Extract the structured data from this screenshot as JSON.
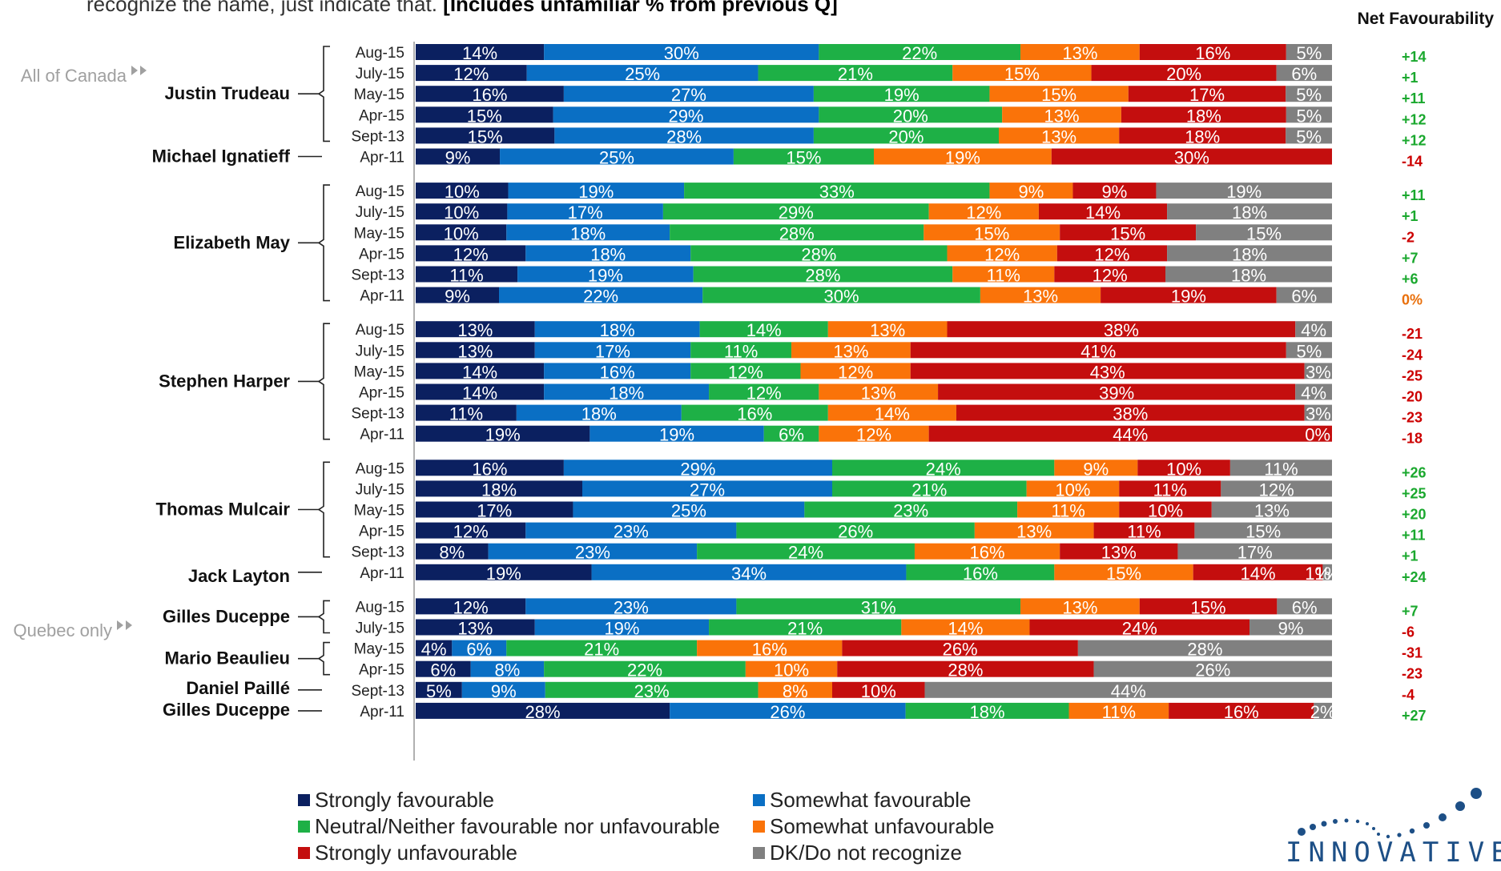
{
  "top_note": {
    "prefix": "recognize the name, just indicate that. ",
    "bold": "[Includes unfamiliar % from previous Q]"
  },
  "section_labels": [
    "All of Canada",
    "Quebec only"
  ],
  "net_header": "Net Favourability",
  "colors": {
    "strongly_favourable": "#0b2060",
    "somewhat_favourable": "#0a6fc4",
    "neutral": "#1eb046",
    "somewhat_unfavourable": "#fa7309",
    "strongly_unfavourable": "#c40e0e",
    "dk": "#808080",
    "net_positive": "#1aa82e",
    "net_negative": "#cc0000",
    "net_zero": "#e96f0a"
  },
  "chart_data": {
    "type": "bar",
    "orientation": "horizontal",
    "stacked": true,
    "series": [
      {
        "name": "Strongly favourable",
        "color": "#0b2060"
      },
      {
        "name": "Somewhat favourable",
        "color": "#0a6fc4"
      },
      {
        "name": "Neutral/Neither favourable nor unfavourable",
        "color": "#1eb046"
      },
      {
        "name": "Somewhat unfavourable",
        "color": "#fa7309"
      },
      {
        "name": "Strongly unfavourable",
        "color": "#c40e0e"
      },
      {
        "name": "DK/Do not recognize",
        "color": "#808080"
      }
    ],
    "groups": [
      {
        "name": "Justin Trudeau",
        "rows": [
          {
            "date": "Aug-15",
            "values": [
              14,
              30,
              22,
              13,
              16,
              5
            ],
            "net": "+14"
          },
          {
            "date": "July-15",
            "values": [
              12,
              25,
              21,
              15,
              20,
              6
            ],
            "net": "+1"
          },
          {
            "date": "May-15",
            "values": [
              16,
              27,
              19,
              15,
              17,
              5
            ],
            "net": "+11"
          },
          {
            "date": "Apr-15",
            "values": [
              15,
              29,
              20,
              13,
              18,
              5
            ],
            "net": "+12"
          },
          {
            "date": "Sept-13",
            "values": [
              15,
              28,
              20,
              13,
              18,
              5
            ],
            "net": "+12"
          }
        ]
      },
      {
        "name": "Michael Ignatieff",
        "rows": [
          {
            "date": "Apr-11",
            "values": [
              9,
              25,
              15,
              19,
              30,
              0
            ],
            "net": "-14"
          }
        ]
      },
      {
        "name": "Elizabeth May",
        "rows": [
          {
            "date": "Aug-15",
            "values": [
              10,
              19,
              33,
              9,
              9,
              19
            ],
            "net": "+11"
          },
          {
            "date": "July-15",
            "values": [
              10,
              17,
              29,
              12,
              14,
              18
            ],
            "net": "+1"
          },
          {
            "date": "May-15",
            "values": [
              10,
              18,
              28,
              15,
              15,
              15
            ],
            "net": "-2"
          },
          {
            "date": "Apr-15",
            "values": [
              12,
              18,
              28,
              12,
              12,
              18
            ],
            "net": "+7"
          },
          {
            "date": "Sept-13",
            "values": [
              11,
              19,
              28,
              11,
              12,
              18
            ],
            "net": "+6"
          },
          {
            "date": "Apr-11",
            "values": [
              9,
              22,
              30,
              13,
              19,
              6
            ],
            "net": "0%"
          }
        ]
      },
      {
        "name": "Stephen Harper",
        "rows": [
          {
            "date": "Aug-15",
            "values": [
              13,
              18,
              14,
              13,
              38,
              4
            ],
            "net": "-21"
          },
          {
            "date": "July-15",
            "values": [
              13,
              17,
              11,
              13,
              41,
              5
            ],
            "net": "-24"
          },
          {
            "date": "May-15",
            "values": [
              14,
              16,
              12,
              12,
              43,
              3
            ],
            "net": "-25"
          },
          {
            "date": "Apr-15",
            "values": [
              14,
              18,
              12,
              13,
              39,
              4
            ],
            "net": "-20"
          },
          {
            "date": "Sept-13",
            "values": [
              11,
              18,
              16,
              14,
              38,
              3
            ],
            "net": "-23"
          },
          {
            "date": "Apr-11",
            "values": [
              19,
              19,
              6,
              12,
              44,
              0
            ],
            "net": "-18"
          }
        ]
      },
      {
        "name": "Thomas Mulcair",
        "rows": [
          {
            "date": "Aug-15",
            "values": [
              16,
              29,
              24,
              9,
              10,
              11
            ],
            "net": "+26"
          },
          {
            "date": "July-15",
            "values": [
              18,
              27,
              21,
              10,
              11,
              12
            ],
            "net": "+25"
          },
          {
            "date": "May-15",
            "values": [
              17,
              25,
              23,
              11,
              10,
              13
            ],
            "net": "+20"
          },
          {
            "date": "Apr-15",
            "values": [
              12,
              23,
              26,
              13,
              11,
              15
            ],
            "net": "+11"
          },
          {
            "date": "Sept-13",
            "values": [
              8,
              23,
              24,
              16,
              13,
              17
            ],
            "net": "+1"
          }
        ]
      },
      {
        "name": "Jack Layton",
        "rows": [
          {
            "date": "Apr-11",
            "values": [
              19,
              34,
              16,
              15,
              14,
              1
            ],
            "net": "+24"
          }
        ]
      },
      {
        "name": "Gilles Duceppe",
        "rows": [
          {
            "date": "Aug-15",
            "values": [
              12,
              23,
              31,
              13,
              15,
              6
            ],
            "net": "+7"
          },
          {
            "date": "July-15",
            "values": [
              13,
              19,
              21,
              14,
              24,
              9
            ],
            "net": "-6"
          }
        ]
      },
      {
        "name": "Mario Beaulieu",
        "rows": [
          {
            "date": "May-15",
            "values": [
              4,
              6,
              21,
              16,
              26,
              28
            ],
            "net": "-31"
          },
          {
            "date": "Apr-15",
            "values": [
              6,
              8,
              22,
              10,
              28,
              26
            ],
            "net": "-23"
          }
        ]
      },
      {
        "name": "Daniel Paillé",
        "rows": [
          {
            "date": "Sept-13",
            "values": [
              5,
              9,
              23,
              8,
              10,
              44
            ],
            "net": "-4"
          }
        ]
      },
      {
        "name": "Gilles Duceppe",
        "rows": [
          {
            "date": "Apr-11",
            "values": [
              28,
              26,
              18,
              11,
              16,
              2
            ],
            "net": "+27"
          }
        ]
      }
    ],
    "labels": {
      "Harper Apr-11 dk": "0%",
      "Layton Apr-11 dk": "1%"
    }
  }
}
